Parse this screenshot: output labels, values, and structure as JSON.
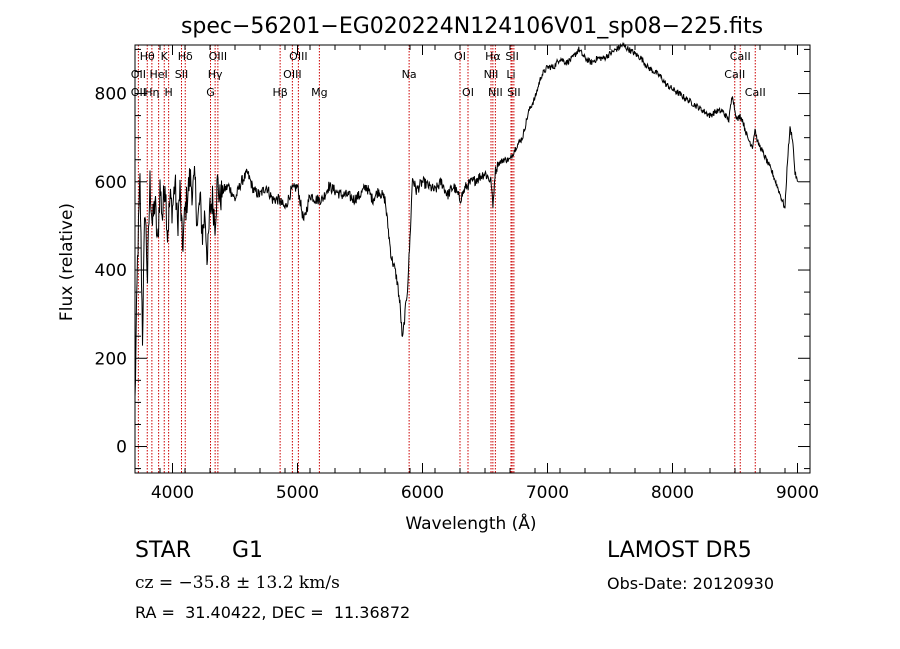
{
  "chart_data": {
    "type": "line",
    "title": "spec−56201−EG020224N124106V01_sp08−225.fits",
    "xlabel": "Wavelength (Å)",
    "ylabel": "Flux (relative)",
    "xlim": [
      3700,
      9100
    ],
    "ylim": [
      -60,
      910
    ],
    "xticks": [
      4000,
      5000,
      6000,
      7000,
      8000,
      9000
    ],
    "yticks": [
      0,
      200,
      400,
      600,
      800
    ],
    "grid": false,
    "series": [
      {
        "x": [
          3700,
          3720,
          3740,
          3760,
          3780,
          3800,
          3820,
          3840,
          3860,
          3880,
          3900,
          3920,
          3940,
          3960,
          3980,
          4000,
          4020,
          4040,
          4060,
          4080,
          4100,
          4120,
          4140,
          4160,
          4180,
          4200,
          4220,
          4240,
          4260,
          4280,
          4300,
          4320,
          4340,
          4360,
          4380,
          4400,
          4450,
          4500,
          4550,
          4600,
          4650,
          4700,
          4750,
          4800,
          4850,
          4900,
          4950,
          5000,
          5050,
          5100,
          5150,
          5200,
          5250,
          5300,
          5350,
          5400,
          5450,
          5500,
          5550,
          5600,
          5650,
          5700,
          5750,
          5780,
          5800,
          5820,
          5840,
          5860,
          5880,
          5900,
          5920,
          5950,
          6000,
          6050,
          6100,
          6150,
          6200,
          6250,
          6300,
          6350,
          6400,
          6450,
          6500,
          6550,
          6563,
          6580,
          6600,
          6650,
          6700,
          6750,
          6800,
          6850,
          6900,
          6950,
          7000,
          7050,
          7100,
          7150,
          7200,
          7250,
          7300,
          7350,
          7400,
          7450,
          7500,
          7550,
          7600,
          7650,
          7700,
          7750,
          7800,
          7850,
          7900,
          7950,
          8000,
          8050,
          8100,
          8150,
          8200,
          8250,
          8300,
          8350,
          8400,
          8450,
          8480,
          8500,
          8520,
          8540,
          8560,
          8600,
          8640,
          8660,
          8680,
          8700,
          8750,
          8800,
          8850,
          8900,
          8920,
          8940,
          8960,
          8980,
          9000
        ],
        "y": [
          100,
          420,
          600,
          250,
          550,
          380,
          600,
          500,
          560,
          450,
          590,
          520,
          610,
          480,
          560,
          540,
          600,
          500,
          580,
          450,
          530,
          570,
          610,
          580,
          600,
          500,
          560,
          480,
          530,
          420,
          540,
          560,
          510,
          600,
          560,
          580,
          590,
          560,
          600,
          620,
          580,
          570,
          590,
          560,
          560,
          540,
          580,
          590,
          510,
          570,
          560,
          560,
          590,
          580,
          570,
          570,
          560,
          570,
          590,
          560,
          580,
          560,
          430,
          400,
          370,
          320,
          240,
          300,
          360,
          470,
          610,
          580,
          600,
          590,
          580,
          600,
          570,
          590,
          560,
          590,
          600,
          610,
          620,
          600,
          540,
          620,
          640,
          650,
          650,
          680,
          700,
          760,
          790,
          840,
          860,
          860,
          880,
          870,
          880,
          900,
          880,
          870,
          880,
          880,
          890,
          900,
          910,
          900,
          890,
          880,
          860,
          850,
          840,
          820,
          810,
          800,
          790,
          780,
          770,
          760,
          750,
          760,
          760,
          740,
          800,
          760,
          740,
          750,
          740,
          700,
          680,
          720,
          690,
          680,
          650,
          620,
          580,
          540,
          650,
          720,
          700,
          620,
          600
        ]
      }
    ],
    "line_labels": [
      {
        "text": "Hθ",
        "row": 0,
        "x": 3798
      },
      {
        "text": "K",
        "row": 0,
        "x": 3934
      },
      {
        "text": "Hδ",
        "row": 0,
        "x": 4102
      },
      {
        "text": "OIII",
        "row": 0,
        "x": 4363
      },
      {
        "text": "OIII",
        "row": 0,
        "x": 5007
      },
      {
        "text": "OI",
        "row": 0,
        "x": 6300
      },
      {
        "text": "Hα",
        "row": 0,
        "x": 6563
      },
      {
        "text": "SII",
        "row": 0,
        "x": 6717
      },
      {
        "text": "CaII",
        "row": 0,
        "x": 8542
      },
      {
        "text": "OII",
        "row": 1,
        "x": 3727
      },
      {
        "text": "HeI",
        "row": 1,
        "x": 3889
      },
      {
        "text": "SII",
        "row": 1,
        "x": 4072
      },
      {
        "text": "Hγ",
        "row": 1,
        "x": 4341
      },
      {
        "text": "OIII",
        "row": 1,
        "x": 4959
      },
      {
        "text": "Na",
        "row": 1,
        "x": 5893
      },
      {
        "text": "NII",
        "row": 1,
        "x": 6548
      },
      {
        "text": "Li",
        "row": 1,
        "x": 6708
      },
      {
        "text": "CaII",
        "row": 1,
        "x": 8498
      },
      {
        "text": "OII",
        "row": 2,
        "x": 3727
      },
      {
        "text": "Hη",
        "row": 2,
        "x": 3835
      },
      {
        "text": "H",
        "row": 2,
        "x": 3969
      },
      {
        "text": "G",
        "row": 2,
        "x": 4304
      },
      {
        "text": "Hβ",
        "row": 2,
        "x": 4861
      },
      {
        "text": "Mg",
        "row": 2,
        "x": 5175
      },
      {
        "text": "OI",
        "row": 2,
        "x": 6364
      },
      {
        "text": "NII",
        "row": 2,
        "x": 6583
      },
      {
        "text": "SII",
        "row": 2,
        "x": 6731
      },
      {
        "text": "CaII",
        "row": 2,
        "x": 8662
      }
    ],
    "line_marker_color": "#cc0000"
  },
  "footer": {
    "obj_class": "STAR",
    "obj_subclass": "G1",
    "survey": "LAMOST DR5",
    "cz": "cz = −35.8 ± 13.2 km/s",
    "obs_date": "Obs-Date: 20120930",
    "radec": "RA =  31.40422, DEC =  11.36872"
  }
}
